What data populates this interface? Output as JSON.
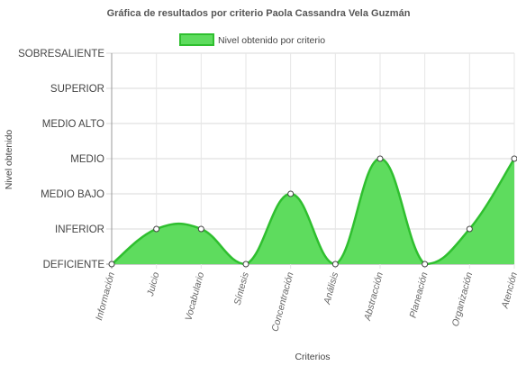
{
  "chart_data": {
    "type": "area",
    "title": "Gráfica de resultados por criterio Paola Cassandra Vela Guzmán",
    "xlabel": "Criterios",
    "ylabel": "Nivel obtenido",
    "categories": [
      "Información",
      "Juicio",
      "Vocabulario",
      "Síntesis",
      "Concentración",
      "Análisis",
      "Abstracción",
      "Planeación",
      "Organización",
      "Atención"
    ],
    "y_levels": [
      "DEFICIENTE",
      "INFERIOR",
      "MEDIO BAJO",
      "MEDIO",
      "MEDIO ALTO",
      "SUPERIOR",
      "SOBRESALIENTE"
    ],
    "ylim": [
      0,
      6
    ],
    "grid": true,
    "legend_position": "top",
    "series": [
      {
        "name": "Nivel obtenido por criterio",
        "values": [
          0,
          1,
          1,
          0,
          2,
          0,
          3,
          0,
          1,
          3
        ],
        "fill_color": "#5edc5e",
        "line_color": "#2fbf2f"
      }
    ]
  }
}
